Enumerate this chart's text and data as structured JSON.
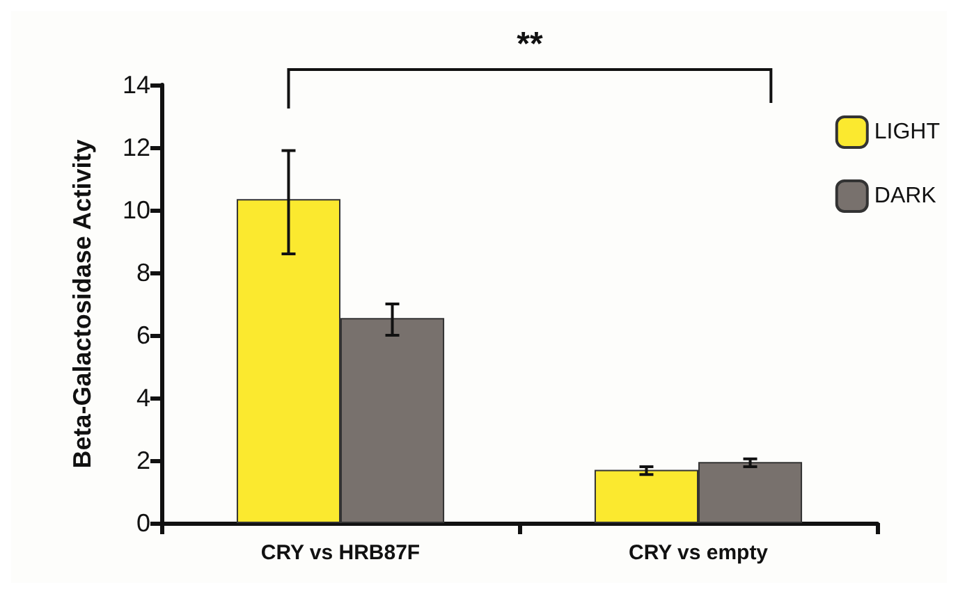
{
  "chart_data": {
    "type": "bar",
    "ylabel": "Beta-Galactosidase Activity",
    "categories": [
      "CRY vs HRB87F",
      "CRY vs empty"
    ],
    "series": [
      {
        "name": "LIGHT",
        "color": "#fbe92f",
        "values": [
          10.35,
          1.7
        ],
        "errors": [
          [
            8.6,
            11.9
          ],
          [
            1.55,
            1.8
          ]
        ]
      },
      {
        "name": "DARK",
        "color": "#78716d",
        "values": [
          6.55,
          1.95
        ],
        "errors": [
          [
            6.0,
            7.0
          ],
          [
            1.8,
            2.05
          ]
        ]
      }
    ],
    "ylim": [
      0,
      14
    ],
    "yticks": [
      0,
      2,
      4,
      6,
      8,
      10,
      12,
      14
    ],
    "grid": false,
    "legend": "top right",
    "annotations": [
      "**"
    ]
  }
}
